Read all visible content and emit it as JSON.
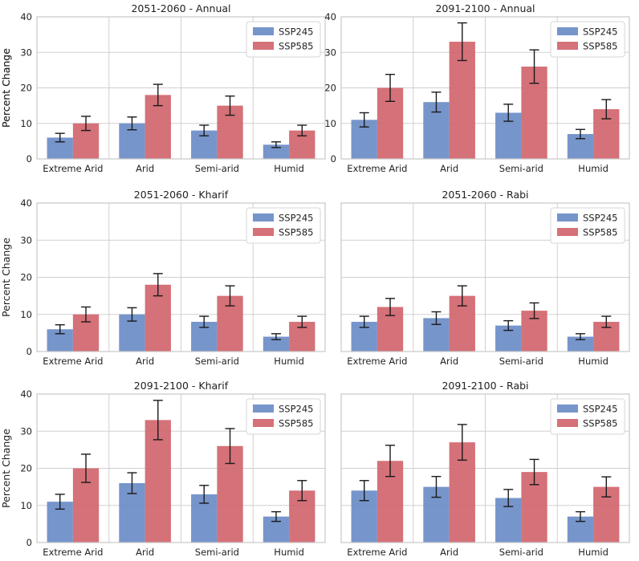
{
  "chart_data": [
    {
      "type": "bar",
      "title": "2051-2060 - Annual",
      "categories": [
        "Extreme Arid",
        "Arid",
        "Semi-arid",
        "Humid"
      ],
      "ylabel": "Percent Change",
      "ylim": [
        0,
        40
      ],
      "yticks": [
        "0",
        "10",
        "20",
        "30",
        "40"
      ],
      "legend": "top-right",
      "series": [
        {
          "name": "SSP245",
          "values": [
            6,
            10,
            8,
            4
          ],
          "errors": [
            1.2,
            1.8,
            1.5,
            0.8
          ]
        },
        {
          "name": "SSP585",
          "values": [
            10,
            18,
            15,
            8
          ],
          "errors": [
            2.0,
            3.0,
            2.7,
            1.5
          ]
        }
      ]
    },
    {
      "type": "bar",
      "title": "2091-2100 - Annual",
      "categories": [
        "Extreme Arid",
        "Arid",
        "Semi-arid",
        "Humid"
      ],
      "ylabel": "Percent Change",
      "ylim": [
        0,
        40
      ],
      "yticks": [
        "0",
        "10",
        "20",
        "30",
        "40"
      ],
      "legend": "top-right",
      "series": [
        {
          "name": "SSP245",
          "values": [
            11,
            16,
            13,
            7
          ],
          "errors": [
            2.0,
            2.8,
            2.4,
            1.3
          ]
        },
        {
          "name": "SSP585",
          "values": [
            20,
            33,
            26,
            14
          ],
          "errors": [
            3.8,
            5.3,
            4.7,
            2.7
          ]
        }
      ]
    },
    {
      "type": "bar",
      "title": "2051-2060 - Kharif",
      "categories": [
        "Extreme Arid",
        "Arid",
        "Semi-arid",
        "Humid"
      ],
      "ylabel": "Percent Change",
      "ylim": [
        0,
        40
      ],
      "yticks": [
        "0",
        "10",
        "20",
        "30",
        "40"
      ],
      "legend": "top-right",
      "series": [
        {
          "name": "SSP245",
          "values": [
            6,
            10,
            8,
            4
          ],
          "errors": [
            1.2,
            1.8,
            1.5,
            0.8
          ]
        },
        {
          "name": "SSP585",
          "values": [
            10,
            18,
            15,
            8
          ],
          "errors": [
            2.0,
            3.0,
            2.7,
            1.5
          ]
        }
      ]
    },
    {
      "type": "bar",
      "title": "2051-2060 - Rabi",
      "categories": [
        "Extreme Arid",
        "Arid",
        "Semi-arid",
        "Humid"
      ],
      "ylabel": "",
      "ylim": [
        0,
        40
      ],
      "yticks": [],
      "legend": "top-right",
      "series": [
        {
          "name": "SSP245",
          "values": [
            8,
            9,
            7,
            4
          ],
          "errors": [
            1.5,
            1.7,
            1.3,
            0.8
          ]
        },
        {
          "name": "SSP585",
          "values": [
            12,
            15,
            11,
            8
          ],
          "errors": [
            2.3,
            2.7,
            2.1,
            1.5
          ]
        }
      ]
    },
    {
      "type": "bar",
      "title": "2091-2100 - Kharif",
      "categories": [
        "Extreme Arid",
        "Arid",
        "Semi-arid",
        "Humid"
      ],
      "ylabel": "Percent Change",
      "ylim": [
        0,
        40
      ],
      "yticks": [
        "0",
        "10",
        "20",
        "30",
        "40"
      ],
      "legend": "top-right",
      "series": [
        {
          "name": "SSP245",
          "values": [
            11,
            16,
            13,
            7
          ],
          "errors": [
            2.0,
            2.8,
            2.4,
            1.3
          ]
        },
        {
          "name": "SSP585",
          "values": [
            20,
            33,
            26,
            14
          ],
          "errors": [
            3.8,
            5.3,
            4.7,
            2.7
          ]
        }
      ]
    },
    {
      "type": "bar",
      "title": "2091-2100 - Rabi",
      "categories": [
        "Extreme Arid",
        "Arid",
        "Semi-arid",
        "Humid"
      ],
      "ylabel": "",
      "ylim": [
        0,
        40
      ],
      "yticks": [],
      "legend": "top-right",
      "series": [
        {
          "name": "SSP245",
          "values": [
            14,
            15,
            12,
            7
          ],
          "errors": [
            2.7,
            2.8,
            2.3,
            1.3
          ]
        },
        {
          "name": "SSP585",
          "values": [
            22,
            27,
            19,
            15
          ],
          "errors": [
            4.2,
            4.8,
            3.4,
            2.7
          ]
        }
      ]
    }
  ],
  "colors": {
    "SSP245": "#6a8cc7",
    "SSP585": "#d1656c",
    "grid": "#d0d0d0",
    "frame": "#c8c8c8",
    "errorbar": "#1a1a1a"
  }
}
